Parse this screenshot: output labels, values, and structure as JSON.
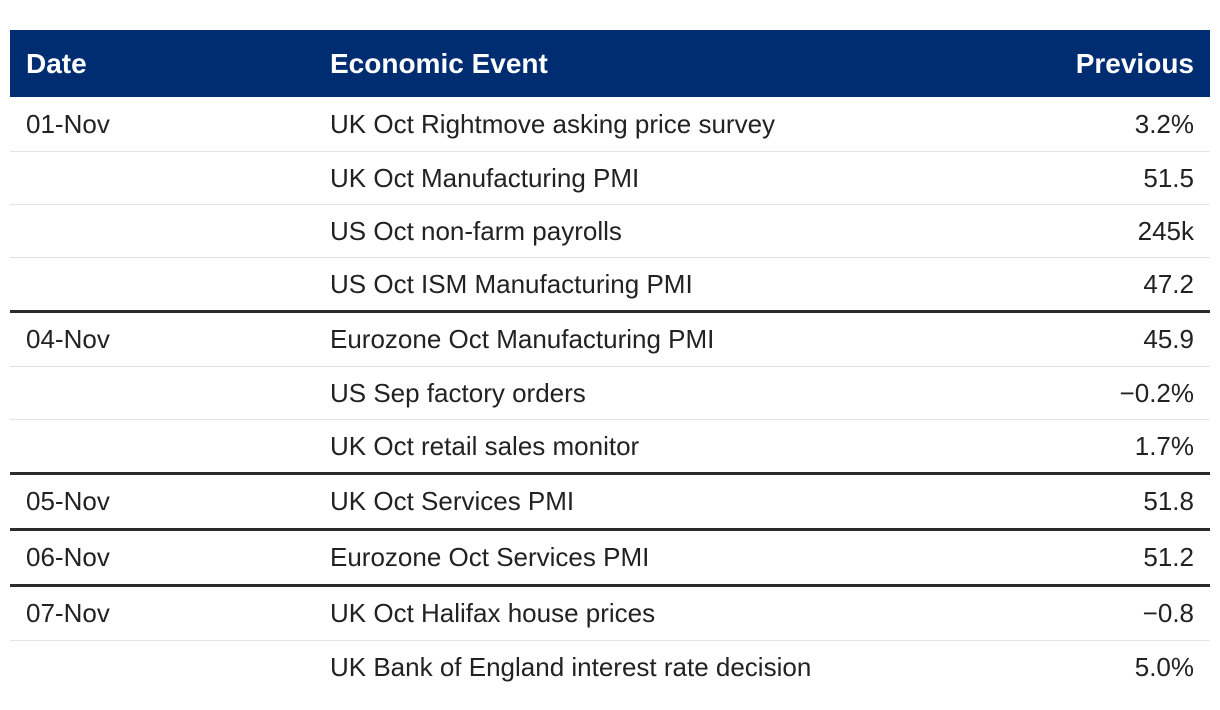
{
  "table": {
    "headers": {
      "date": "Date",
      "event": "Economic Event",
      "previous": "Previous"
    },
    "groups": [
      {
        "date": "01-Nov",
        "rows": [
          {
            "event": "UK Oct Rightmove asking price survey",
            "previous": "3.2%"
          },
          {
            "event": "UK Oct Manufacturing PMI",
            "previous": "51.5"
          },
          {
            "event": "US Oct non-farm payrolls",
            "previous": "245k"
          },
          {
            "event": "US Oct ISM Manufacturing PMI",
            "previous": "47.2"
          }
        ]
      },
      {
        "date": "04-Nov",
        "rows": [
          {
            "event": "Eurozone Oct Manufacturing PMI",
            "previous": "45.9"
          },
          {
            "event": "US Sep factory orders",
            "previous": "−0.2%"
          },
          {
            "event": "UK Oct retail sales monitor",
            "previous": "1.7%"
          }
        ]
      },
      {
        "date": "05-Nov",
        "rows": [
          {
            "event": "UK Oct Services PMI",
            "previous": "51.8"
          }
        ]
      },
      {
        "date": "06-Nov",
        "rows": [
          {
            "event": "Eurozone Oct Services PMI",
            "previous": "51.2"
          }
        ]
      },
      {
        "date": "07-Nov",
        "rows": [
          {
            "event": "UK Oct Halifax house prices",
            "previous": "−0.8"
          },
          {
            "event": "UK Bank of England interest rate decision",
            "previous": "5.0%"
          }
        ]
      }
    ]
  }
}
